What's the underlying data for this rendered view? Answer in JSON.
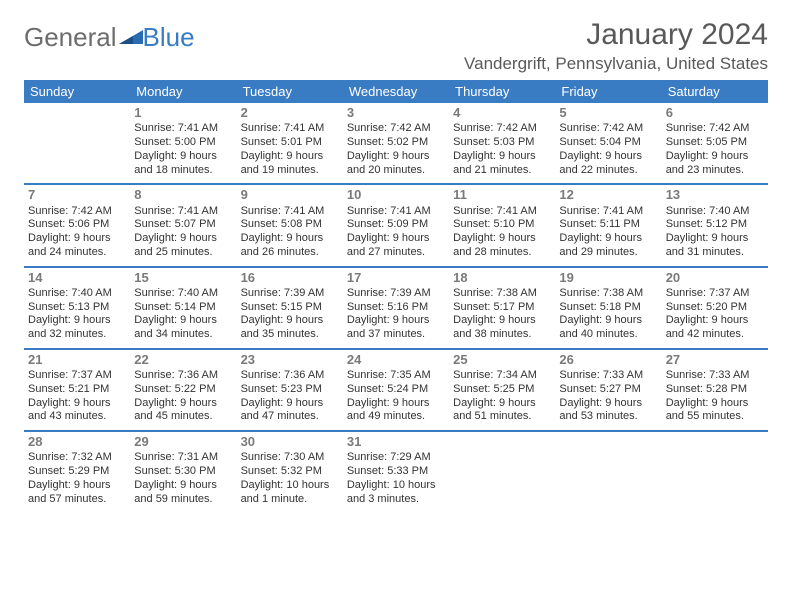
{
  "logo": {
    "text1": "General",
    "text2": "Blue",
    "mark_color": "#2b6cb0"
  },
  "title": "January 2024",
  "location": "Vandergrift, Pennsylvania, United States",
  "colors": {
    "header_bg": "#3a7cc4",
    "header_text": "#ffffff",
    "border": "#3a7cc4",
    "daynum": "#7a7a7a",
    "body_text": "#333333",
    "title_text": "#595959"
  },
  "daynames": [
    "Sunday",
    "Monday",
    "Tuesday",
    "Wednesday",
    "Thursday",
    "Friday",
    "Saturday"
  ],
  "weeks": [
    [
      null,
      {
        "d": "1",
        "sr": "7:41 AM",
        "ss": "5:00 PM",
        "dl": "9 hours and 18 minutes."
      },
      {
        "d": "2",
        "sr": "7:41 AM",
        "ss": "5:01 PM",
        "dl": "9 hours and 19 minutes."
      },
      {
        "d": "3",
        "sr": "7:42 AM",
        "ss": "5:02 PM",
        "dl": "9 hours and 20 minutes."
      },
      {
        "d": "4",
        "sr": "7:42 AM",
        "ss": "5:03 PM",
        "dl": "9 hours and 21 minutes."
      },
      {
        "d": "5",
        "sr": "7:42 AM",
        "ss": "5:04 PM",
        "dl": "9 hours and 22 minutes."
      },
      {
        "d": "6",
        "sr": "7:42 AM",
        "ss": "5:05 PM",
        "dl": "9 hours and 23 minutes."
      }
    ],
    [
      {
        "d": "7",
        "sr": "7:42 AM",
        "ss": "5:06 PM",
        "dl": "9 hours and 24 minutes."
      },
      {
        "d": "8",
        "sr": "7:41 AM",
        "ss": "5:07 PM",
        "dl": "9 hours and 25 minutes."
      },
      {
        "d": "9",
        "sr": "7:41 AM",
        "ss": "5:08 PM",
        "dl": "9 hours and 26 minutes."
      },
      {
        "d": "10",
        "sr": "7:41 AM",
        "ss": "5:09 PM",
        "dl": "9 hours and 27 minutes."
      },
      {
        "d": "11",
        "sr": "7:41 AM",
        "ss": "5:10 PM",
        "dl": "9 hours and 28 minutes."
      },
      {
        "d": "12",
        "sr": "7:41 AM",
        "ss": "5:11 PM",
        "dl": "9 hours and 29 minutes."
      },
      {
        "d": "13",
        "sr": "7:40 AM",
        "ss": "5:12 PM",
        "dl": "9 hours and 31 minutes."
      }
    ],
    [
      {
        "d": "14",
        "sr": "7:40 AM",
        "ss": "5:13 PM",
        "dl": "9 hours and 32 minutes."
      },
      {
        "d": "15",
        "sr": "7:40 AM",
        "ss": "5:14 PM",
        "dl": "9 hours and 34 minutes."
      },
      {
        "d": "16",
        "sr": "7:39 AM",
        "ss": "5:15 PM",
        "dl": "9 hours and 35 minutes."
      },
      {
        "d": "17",
        "sr": "7:39 AM",
        "ss": "5:16 PM",
        "dl": "9 hours and 37 minutes."
      },
      {
        "d": "18",
        "sr": "7:38 AM",
        "ss": "5:17 PM",
        "dl": "9 hours and 38 minutes."
      },
      {
        "d": "19",
        "sr": "7:38 AM",
        "ss": "5:18 PM",
        "dl": "9 hours and 40 minutes."
      },
      {
        "d": "20",
        "sr": "7:37 AM",
        "ss": "5:20 PM",
        "dl": "9 hours and 42 minutes."
      }
    ],
    [
      {
        "d": "21",
        "sr": "7:37 AM",
        "ss": "5:21 PM",
        "dl": "9 hours and 43 minutes."
      },
      {
        "d": "22",
        "sr": "7:36 AM",
        "ss": "5:22 PM",
        "dl": "9 hours and 45 minutes."
      },
      {
        "d": "23",
        "sr": "7:36 AM",
        "ss": "5:23 PM",
        "dl": "9 hours and 47 minutes."
      },
      {
        "d": "24",
        "sr": "7:35 AM",
        "ss": "5:24 PM",
        "dl": "9 hours and 49 minutes."
      },
      {
        "d": "25",
        "sr": "7:34 AM",
        "ss": "5:25 PM",
        "dl": "9 hours and 51 minutes."
      },
      {
        "d": "26",
        "sr": "7:33 AM",
        "ss": "5:27 PM",
        "dl": "9 hours and 53 minutes."
      },
      {
        "d": "27",
        "sr": "7:33 AM",
        "ss": "5:28 PM",
        "dl": "9 hours and 55 minutes."
      }
    ],
    [
      {
        "d": "28",
        "sr": "7:32 AM",
        "ss": "5:29 PM",
        "dl": "9 hours and 57 minutes."
      },
      {
        "d": "29",
        "sr": "7:31 AM",
        "ss": "5:30 PM",
        "dl": "9 hours and 59 minutes."
      },
      {
        "d": "30",
        "sr": "7:30 AM",
        "ss": "5:32 PM",
        "dl": "10 hours and 1 minute."
      },
      {
        "d": "31",
        "sr": "7:29 AM",
        "ss": "5:33 PM",
        "dl": "10 hours and 3 minutes."
      },
      null,
      null,
      null
    ]
  ],
  "labels": {
    "sunrise": "Sunrise:",
    "sunset": "Sunset:",
    "daylight": "Daylight:"
  }
}
